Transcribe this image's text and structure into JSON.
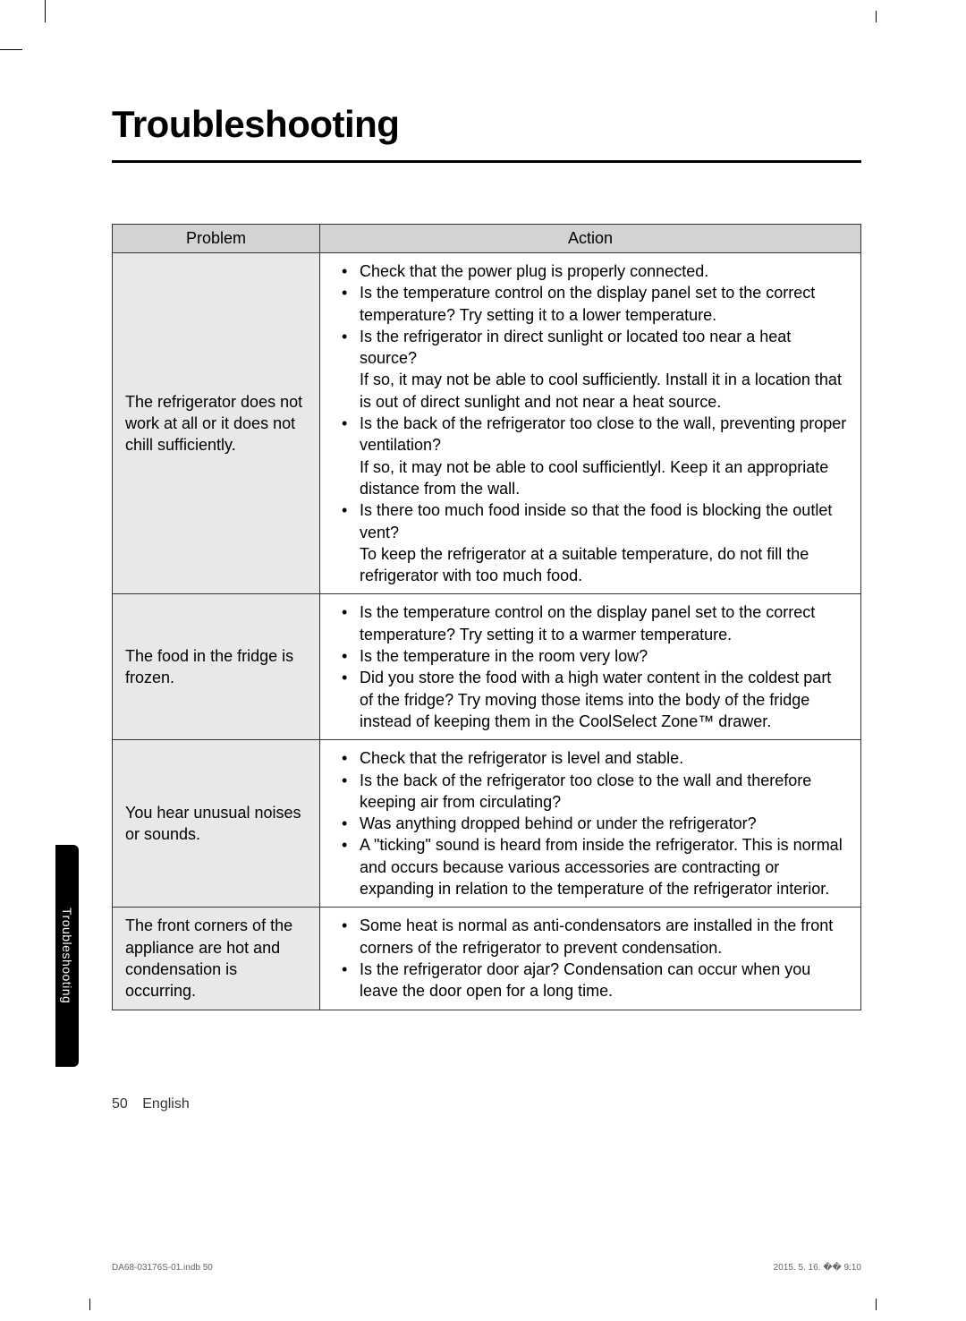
{
  "title": "Troubleshooting",
  "table": {
    "headers": {
      "problem": "Problem",
      "action": "Action"
    },
    "rows": [
      {
        "problem": "The refrigerator does not work at all or it does not chill sufﬁciently.",
        "actions": [
          {
            "text": "Check that the power plug is properly connected."
          },
          {
            "text": "Is the temperature control on the display panel set to the correct temperature? Try setting it to a lower temperature."
          },
          {
            "text": "Is the refrigerator in direct sunlight or located too near a heat source?",
            "cont": "If so, it may not be able to cool sufﬁciently. Install it in a location that is out of direct sunlight and not near a heat source."
          },
          {
            "text": "Is the back of the refrigerator too close to the wall, preventing proper ventilation?",
            "cont": "If so, it may not be able to cool sufﬁcientlyl. Keep it an appropriate distance from the wall."
          },
          {
            "text": "Is there too much food inside so that the food is blocking the outlet vent?",
            "cont": "To keep the refrigerator at a suitable temperature, do not ﬁll the refrigerator with too much food."
          }
        ]
      },
      {
        "problem": "The food in the fridge is frozen.",
        "actions": [
          {
            "text": "Is the temperature control on the display panel set to the correct temperature? Try setting it to a warmer temperature."
          },
          {
            "text": "Is the temperature in the room very low?"
          },
          {
            "text": "Did you store the food with a high water content in the coldest part of the fridge? Try moving those items into the body of the fridge instead of keeping them in the CoolSelect Zone™ drawer."
          }
        ]
      },
      {
        "problem": "You hear unusual noises or sounds.",
        "actions": [
          {
            "text": "Check that the refrigerator is level and stable."
          },
          {
            "text": "Is the back of the refrigerator too close to the wall and therefore keeping air from circulating?"
          },
          {
            "text": "Was anything dropped behind or under the refrigerator?"
          },
          {
            "text": "A \"ticking\" sound is heard from inside the refrigerator. This is normal and occurs because various accessories are contracting or expanding in relation to the temperature of the refrigerator interior."
          }
        ]
      },
      {
        "problem": "The front corners of the appliance are hot and condensation is occurring.",
        "actions": [
          {
            "text": "Some heat is normal as anti-condensators are installed in the front corners of the refrigerator to prevent condensation."
          },
          {
            "text": "Is the refrigerator door ajar? Condensation can occur when you leave the door open for a long time."
          }
        ]
      }
    ]
  },
  "sideTab": "Troubleshooting",
  "footer": {
    "pageNum": "50",
    "lang": "English"
  },
  "printFooter": {
    "left": "DA68-03176S-01.indb   50",
    "right": "2015. 5. 16.   �� 9:10"
  }
}
